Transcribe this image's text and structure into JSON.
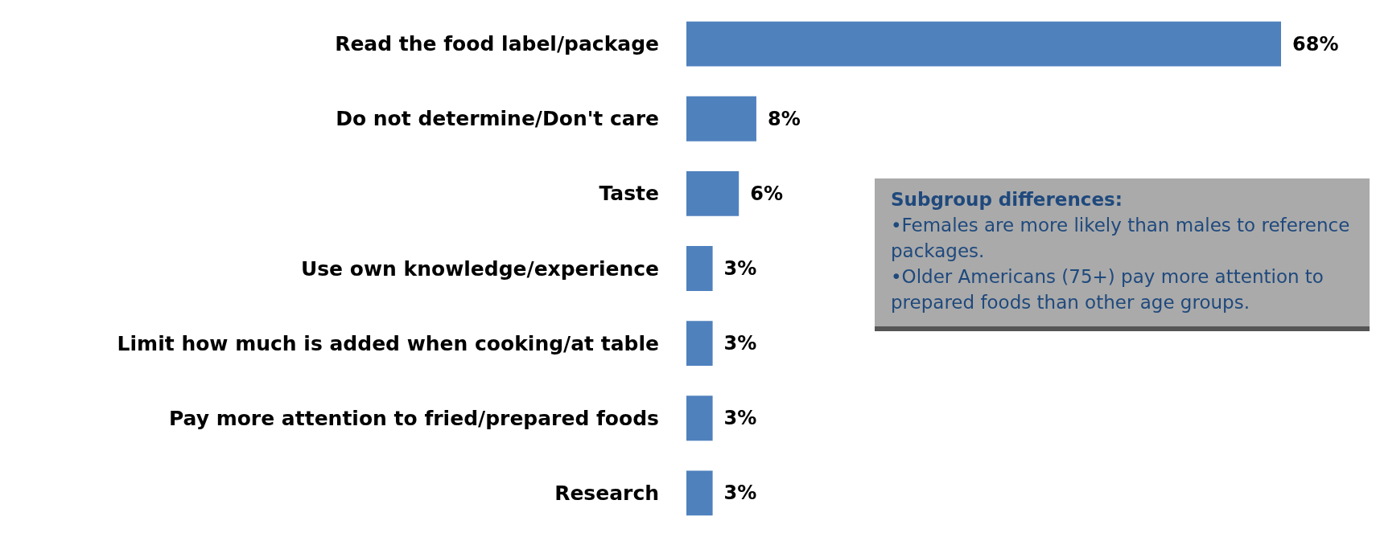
{
  "chart_data": {
    "type": "bar",
    "orientation": "horizontal",
    "categories": [
      "Read the food label/package",
      "Do not determine/Don't care",
      "Taste",
      "Use own knowledge/experience",
      "Limit how much is added when cooking/at table",
      "Pay more attention to fried/prepared foods",
      "Research"
    ],
    "values": [
      68,
      8,
      6,
      3,
      3,
      3,
      3
    ],
    "value_labels": [
      "68%",
      "8%",
      "6%",
      "3%",
      "3%",
      "3%",
      "3%"
    ],
    "color": "#4f81bd",
    "annotations": [
      "Subgroup differences:",
      "•Females are more likely than males to reference packages.",
      "•Older Americans (75+) pay more attention to prepared foods than other age groups."
    ],
    "grid": false
  }
}
